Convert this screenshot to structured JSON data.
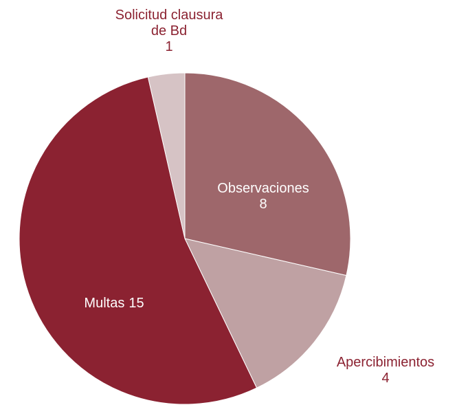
{
  "chart_data": {
    "type": "pie",
    "categories": [
      "Observaciones",
      "Apercibimientos",
      "Multas",
      "Solicitud clausura de Bd"
    ],
    "values": [
      8,
      4,
      15,
      1
    ],
    "colors": [
      "#9e676b",
      "#bfa1a3",
      "#8b2231",
      "#d6c3c5"
    ]
  }
}
